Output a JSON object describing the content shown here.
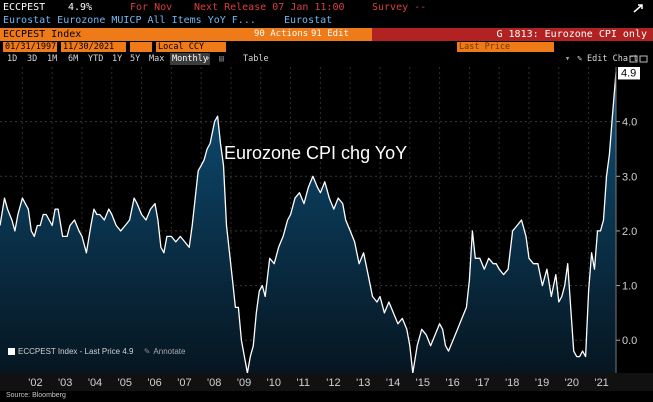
{
  "header": {
    "ticker": "ECCPEST",
    "value": "4.9%",
    "for_label": "For Nov",
    "next_release": "Next Release 07 Jan 11:00",
    "survey": "Survey --",
    "description": "Eurostat Eurozone MUICP All Items YoY F...",
    "source": "Eurostat"
  },
  "command_bar": {
    "security": "ECCPEST Index",
    "actions": "90 Actions",
    "edit": "91 Edit",
    "chart_id": "G 1813: Eurozone CPI only"
  },
  "date_row": {
    "start_date": "01/31/1997",
    "end_date": "11/30/2021",
    "currency": "Local CCY",
    "mode": "Last Price"
  },
  "toolbar": {
    "periods": [
      "1D",
      "3D",
      "1M",
      "6M",
      "YTD",
      "1Y",
      "5Y",
      "Max"
    ],
    "frequency": "Monthly",
    "table_label": "Table",
    "edit_chart": "Edit Chart"
  },
  "legend": {
    "label": "ECCPEST Index - Last Price 4.9",
    "annotate": "Annotate"
  },
  "footer": "Source: Bloomberg",
  "colors": {
    "accent_orange": "#ef7a18",
    "accent_red": "#b22222",
    "area_top": "#0c4b74",
    "area_bottom": "#06131d",
    "line": "#ffffff"
  },
  "chart_data": {
    "type": "area",
    "title": "Eurozone CPI chg YoY",
    "last_value_label": "4.9",
    "y_ticks": [
      0.0,
      1.0,
      2.0,
      3.0,
      4.0
    ],
    "y_tick_labels": [
      "0.0",
      "1.0",
      "2.0",
      "3.0",
      "4.0"
    ],
    "ylim": [
      -0.6,
      5.0
    ],
    "xlim": [
      2001.25,
      2021.92
    ],
    "x_tick_labels": [
      "'02",
      "'03",
      "'04",
      "'05",
      "'06",
      "'07",
      "'08",
      "'09",
      "'10",
      "'11",
      "'12",
      "'13",
      "'14",
      "'15",
      "'16",
      "'17",
      "'18",
      "'19",
      "'20",
      "'21"
    ],
    "x_tick_values": [
      2002,
      2003,
      2004,
      2005,
      2006,
      2007,
      2008,
      2009,
      2010,
      2011,
      2012,
      2013,
      2014,
      2015,
      2016,
      2017,
      2018,
      2019,
      2020,
      2021
    ],
    "grid": true,
    "series": [
      {
        "name": "ECCPEST Index",
        "x": [
          2001.25,
          2001.4,
          2001.5,
          2001.65,
          2001.75,
          2001.85,
          2002.0,
          2002.1,
          2002.2,
          2002.3,
          2002.4,
          2002.5,
          2002.6,
          2002.7,
          2002.8,
          2002.9,
          2003.0,
          2003.1,
          2003.2,
          2003.35,
          2003.5,
          2003.6,
          2003.75,
          2003.9,
          2004.0,
          2004.15,
          2004.3,
          2004.4,
          2004.5,
          2004.6,
          2004.75,
          2004.9,
          2005.0,
          2005.15,
          2005.3,
          2005.45,
          2005.6,
          2005.75,
          2005.85,
          2006.0,
          2006.15,
          2006.3,
          2006.45,
          2006.55,
          2006.65,
          2006.75,
          2006.85,
          2007.0,
          2007.15,
          2007.3,
          2007.45,
          2007.6,
          2007.7,
          2007.8,
          2007.9,
          2008.0,
          2008.1,
          2008.2,
          2008.3,
          2008.45,
          2008.55,
          2008.65,
          2008.75,
          2008.85,
          2008.95,
          2009.05,
          2009.15,
          2009.25,
          2009.35,
          2009.45,
          2009.55,
          2009.65,
          2009.75,
          2009.85,
          2009.95,
          2010.05,
          2010.15,
          2010.3,
          2010.45,
          2010.6,
          2010.75,
          2010.9,
          2011.0,
          2011.15,
          2011.3,
          2011.45,
          2011.6,
          2011.75,
          2011.9,
          2012.0,
          2012.15,
          2012.3,
          2012.45,
          2012.6,
          2012.75,
          2012.85,
          2013.0,
          2013.15,
          2013.3,
          2013.45,
          2013.6,
          2013.75,
          2013.9,
          2014.0,
          2014.15,
          2014.3,
          2014.45,
          2014.6,
          2014.75,
          2014.9,
          2015.0,
          2015.1,
          2015.25,
          2015.4,
          2015.55,
          2015.7,
          2015.85,
          2016.0,
          2016.1,
          2016.2,
          2016.3,
          2016.45,
          2016.6,
          2016.75,
          2016.9,
          2017.0,
          2017.1,
          2017.2,
          2017.35,
          2017.5,
          2017.65,
          2017.8,
          2017.9,
          2018.0,
          2018.15,
          2018.3,
          2018.45,
          2018.6,
          2018.75,
          2018.9,
          2019.0,
          2019.15,
          2019.3,
          2019.45,
          2019.6,
          2019.75,
          2019.9,
          2020.0,
          2020.1,
          2020.2,
          2020.3,
          2020.4,
          2020.5,
          2020.6,
          2020.7,
          2020.8,
          2020.9,
          2021.0,
          2021.1,
          2021.2,
          2021.3,
          2021.4,
          2021.5,
          2021.6,
          2021.7,
          2021.8,
          2021.92
        ],
        "values": [
          2.1,
          2.6,
          2.4,
          2.2,
          2.0,
          2.3,
          2.6,
          2.5,
          2.4,
          2.0,
          1.9,
          2.1,
          2.1,
          2.3,
          2.3,
          2.2,
          2.1,
          2.4,
          2.4,
          1.9,
          1.9,
          2.1,
          2.2,
          2.0,
          1.9,
          1.6,
          2.1,
          2.4,
          2.3,
          2.3,
          2.2,
          2.4,
          2.3,
          2.1,
          2.0,
          2.1,
          2.2,
          2.6,
          2.5,
          2.3,
          2.2,
          2.4,
          2.5,
          2.2,
          1.7,
          1.6,
          1.9,
          1.9,
          1.8,
          1.9,
          1.8,
          1.7,
          2.1,
          2.6,
          3.1,
          3.2,
          3.3,
          3.5,
          3.6,
          4.0,
          4.1,
          3.6,
          3.2,
          2.1,
          1.6,
          1.1,
          0.6,
          0.6,
          0.0,
          -0.3,
          -0.6,
          -0.3,
          -0.1,
          0.5,
          0.9,
          1.0,
          0.8,
          1.5,
          1.4,
          1.7,
          1.9,
          2.2,
          2.3,
          2.6,
          2.7,
          2.5,
          2.8,
          3.0,
          2.8,
          2.7,
          2.9,
          2.6,
          2.4,
          2.6,
          2.5,
          2.2,
          2.0,
          1.8,
          1.4,
          1.6,
          1.2,
          0.8,
          0.7,
          0.8,
          0.5,
          0.7,
          0.5,
          0.3,
          0.4,
          0.2,
          -0.1,
          -0.6,
          -0.1,
          0.2,
          0.1,
          -0.1,
          0.1,
          0.3,
          0.2,
          -0.1,
          -0.2,
          0.0,
          0.2,
          0.4,
          0.6,
          1.1,
          2.0,
          1.5,
          1.5,
          1.3,
          1.5,
          1.4,
          1.4,
          1.3,
          1.2,
          1.3,
          2.0,
          2.1,
          2.2,
          1.9,
          1.5,
          1.4,
          1.4,
          1.0,
          1.3,
          0.8,
          1.2,
          0.7,
          0.8,
          1.0,
          1.4,
          0.6,
          -0.2,
          -0.3,
          -0.3,
          -0.2,
          -0.3,
          0.9,
          1.6,
          1.3,
          2.0,
          2.0,
          2.2,
          3.0,
          3.4,
          4.1,
          4.9
        ]
      }
    ]
  }
}
